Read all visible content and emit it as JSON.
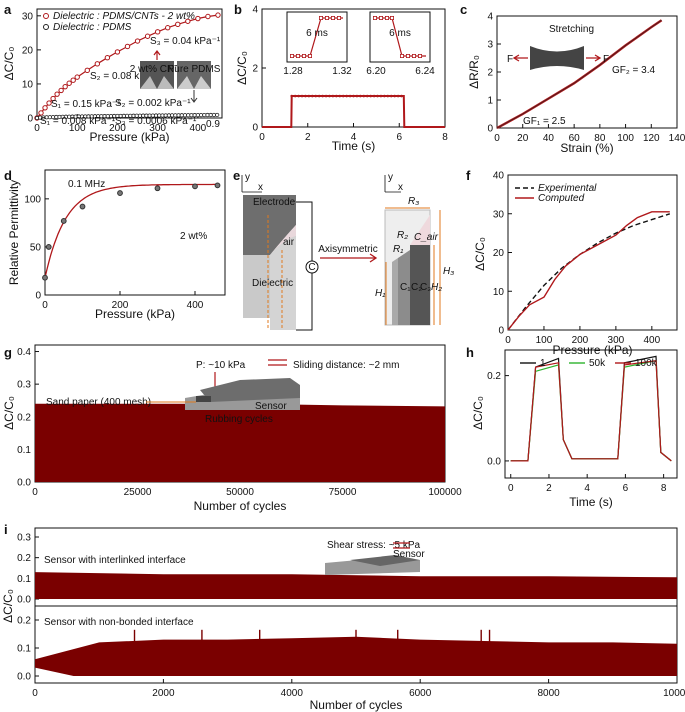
{
  "panels": {
    "a": {
      "letter": "a",
      "xlabel": "Pressure (kPa)",
      "ylabel": "ΔC/C₀",
      "xticks": [
        "0",
        "100",
        "200",
        "300",
        "400"
      ],
      "yticks": [
        "0",
        "10",
        "20",
        "30"
      ],
      "legend": [
        "Dielectric : PDMS/CNTs - 2 wt%",
        "Dielectric : PDMS"
      ],
      "annotations": {
        "s1": "S₁ = 0.15 kPa⁻¹",
        "s2": "S₂ = 0.08 kPa⁻¹",
        "s3": "S₃ = 0.04 kPa⁻¹",
        "p1": "S₁ = 0.008 kPa⁻¹",
        "p2": "S₂ = 0.002 kPa⁻¹",
        "p3": "S₃ = 0.0006 kPa⁻¹",
        "p_end": "0.9",
        "inset1": "2 wt% CNTs",
        "inset2": "Pure PDMS"
      }
    },
    "b": {
      "letter": "b",
      "xlabel": "Time (s)",
      "ylabel": "ΔC/C₀",
      "xticks": [
        "0",
        "2",
        "4",
        "6",
        "8"
      ],
      "yticks": [
        "0",
        "2",
        "4"
      ],
      "inset1": {
        "label": "6 ms",
        "xticks": [
          "1.28",
          "1.32"
        ]
      },
      "inset2": {
        "label": "6 ms",
        "xticks": [
          "6.20",
          "6.24"
        ]
      }
    },
    "c": {
      "letter": "c",
      "xlabel": "Strain (%)",
      "ylabel": "ΔR/R₀",
      "xticks": [
        "0",
        "20",
        "40",
        "60",
        "80",
        "100",
        "120",
        "140"
      ],
      "yticks": [
        "0",
        "1",
        "2",
        "3",
        "4"
      ],
      "annotations": {
        "stretch": "Stretching",
        "f_left": "F",
        "f_right": "F",
        "gf2": "GF₂ = 3.4",
        "gf1": "GF₁ = 2.5"
      }
    },
    "d": {
      "letter": "d",
      "xlabel": "Pressure (kPa)",
      "ylabel": "Relative Permittivity",
      "xticks": [
        "0",
        "200",
        "400"
      ],
      "yticks": [
        "0",
        "50",
        "100"
      ],
      "annotations": {
        "freq": "0.1 MHz",
        "wt": "2 wt%"
      }
    },
    "e": {
      "letter": "e",
      "labels": {
        "electrode": "Electrode",
        "air": "air",
        "dielectric": "Dielectric",
        "axisym": "Axisymmetric",
        "cap": "C",
        "r3": "R₃",
        "r2": "R₂",
        "r1": "R₁",
        "cair": "C_air",
        "h1": "H₁",
        "h2": "H₂",
        "h3": "H₃",
        "c1": "C₁",
        "c2": "C₂",
        "c3": "C₃",
        "y": "y",
        "x": "x"
      }
    },
    "f": {
      "letter": "f",
      "xlabel": "Pressure (kPa)",
      "ylabel": "ΔC/C₀",
      "xticks": [
        "0",
        "100",
        "200",
        "300",
        "400"
      ],
      "yticks": [
        "0",
        "10",
        "20",
        "30",
        "40"
      ],
      "legend": [
        "Experimental",
        "Computed"
      ]
    },
    "g": {
      "letter": "g",
      "xlabel": "Number of cycles",
      "ylabel": "ΔC/C₀",
      "xticks": [
        "0",
        "25000",
        "50000",
        "75000",
        "100000"
      ],
      "yticks": [
        "0.0",
        "0.1",
        "0.2",
        "0.3",
        "0.4"
      ],
      "annotations": {
        "pressure": "P: ~10 kPa",
        "sliding": "Sliding distance: ~2 mm",
        "sand": "Sand paper (400 mesh)",
        "sensor": "Sensor",
        "rubbing": "Rubbing cycles"
      }
    },
    "h": {
      "letter": "h",
      "xlabel": "Time (s)",
      "ylabel": "ΔC/C₀",
      "xticks": [
        "0",
        "2",
        "4",
        "6",
        "8"
      ],
      "yticks": [
        "0.0",
        "0.2"
      ],
      "legend": [
        "1",
        "50k",
        "100k"
      ]
    },
    "i": {
      "letter": "i",
      "xlabel": "Number of cycles",
      "ylabel": "ΔC/C₀",
      "xticks": [
        "0",
        "2000",
        "4000",
        "6000",
        "8000",
        "10000"
      ],
      "yticks_top": [
        "0.0",
        "0.1",
        "0.2",
        "0.3"
      ],
      "yticks_bottom": [
        "0.0",
        "0.1",
        "0.2"
      ],
      "annotations": {
        "shear": "Shear stress: ~5 kPa",
        "sensor": "Sensor",
        "top": "Sensor with interlinked interface",
        "bottom": "Sensor with non-bonded interface"
      }
    }
  },
  "colors": {
    "red": "#b0181b",
    "dark": "#7a0a0a",
    "green": "#2db32d",
    "black": "#111111"
  },
  "chart_data": [
    {
      "id": "a",
      "type": "scatter",
      "xlim": [
        0,
        460
      ],
      "ylim": [
        0,
        32
      ],
      "series": [
        {
          "name": "Dielectric : PDMS/CNTs - 2 wt%",
          "x": [
            0,
            10,
            20,
            30,
            40,
            50,
            60,
            70,
            80,
            90,
            100,
            125,
            150,
            175,
            200,
            225,
            250,
            275,
            300,
            325,
            350,
            375,
            400,
            425,
            450
          ],
          "y": [
            0,
            1.5,
            3,
            4.4,
            5.7,
            7,
            8.1,
            9.2,
            10.2,
            11.1,
            12,
            14,
            15.9,
            17.7,
            19.4,
            21,
            22.6,
            24,
            25.3,
            26.5,
            27.5,
            28.4,
            29.2,
            29.8,
            30.2
          ]
        },
        {
          "name": "Dielectric : PDMS",
          "x": [
            0,
            50,
            100,
            150,
            200,
            250,
            300,
            350,
            400,
            450
          ],
          "y": [
            0,
            0.3,
            0.45,
            0.55,
            0.62,
            0.68,
            0.74,
            0.8,
            0.85,
            0.9
          ]
        }
      ]
    },
    {
      "id": "b",
      "type": "line",
      "xlim": [
        0,
        8
      ],
      "ylim": [
        0,
        4
      ],
      "series": [
        {
          "name": "",
          "x": [
            0,
            1.28,
            1.3,
            6.2,
            6.22,
            8
          ],
          "y": [
            0,
            0,
            1.05,
            1.05,
            0,
            0
          ]
        }
      ]
    },
    {
      "id": "c",
      "type": "line",
      "xlim": [
        0,
        140
      ],
      "ylim": [
        0,
        4
      ],
      "series": [
        {
          "name": "",
          "x": [
            0,
            20,
            40,
            60,
            80,
            100,
            120,
            128
          ],
          "y": [
            0,
            0.5,
            1.05,
            1.6,
            2.25,
            2.95,
            3.6,
            3.85
          ]
        }
      ]
    },
    {
      "id": "d",
      "type": "scatter",
      "xlim": [
        0,
        480
      ],
      "ylim": [
        0,
        130
      ],
      "series": [
        {
          "name": "2 wt%",
          "x": [
            0,
            10,
            50,
            100,
            200,
            300,
            400,
            460
          ],
          "y": [
            18,
            50,
            77,
            92,
            106,
            111,
            113,
            114
          ]
        }
      ]
    },
    {
      "id": "f",
      "type": "line",
      "xlim": [
        0,
        470
      ],
      "ylim": [
        0,
        40
      ],
      "series": [
        {
          "name": "Experimental",
          "x": [
            0,
            50,
            100,
            150,
            200,
            250,
            300,
            350,
            400,
            450
          ],
          "y": [
            0,
            6,
            11.5,
            16,
            19.5,
            22.5,
            25,
            27,
            28.5,
            30
          ]
        },
        {
          "name": "Computed",
          "x": [
            0,
            30,
            60,
            100,
            130,
            160,
            200,
            250,
            300,
            330,
            360,
            400,
            450
          ],
          "y": [
            0,
            3.5,
            6.5,
            8.5,
            13,
            16.5,
            19.5,
            22,
            24.5,
            27,
            29,
            30.5,
            30.5
          ]
        }
      ]
    },
    {
      "id": "g",
      "type": "area",
      "xlim": [
        0,
        100000
      ],
      "ylim": [
        0,
        0.42
      ],
      "series": [
        {
          "name": "",
          "x": [
            0,
            25000,
            50000,
            75000,
            100000
          ],
          "y_low": [
            0.0,
            0.0,
            0.0,
            0.0,
            0.0
          ],
          "y_high": [
            0.24,
            0.24,
            0.24,
            0.235,
            0.232
          ]
        }
      ]
    },
    {
      "id": "h",
      "type": "line",
      "xlim": [
        -0.3,
        8.7
      ],
      "ylim": [
        -0.04,
        0.26
      ],
      "series": [
        {
          "name": "1",
          "x": [
            0,
            0.9,
            1.3,
            2.5,
            2.75,
            3.2,
            5.6,
            5.95,
            7.6,
            7.85,
            8.4
          ],
          "y": [
            0,
            0,
            0.22,
            0.24,
            0.05,
            0.005,
            0.005,
            0.23,
            0.245,
            0.02,
            0
          ]
        },
        {
          "name": "50k",
          "x": [
            0,
            0.9,
            1.3,
            2.5,
            2.75,
            3.2,
            5.6,
            5.95,
            7.6,
            7.85,
            8.4
          ],
          "y": [
            0,
            0,
            0.21,
            0.225,
            0.05,
            0.005,
            0.005,
            0.22,
            0.235,
            0.02,
            0
          ]
        },
        {
          "name": "100k",
          "x": [
            0,
            0.9,
            1.3,
            2.5,
            2.75,
            3.2,
            5.6,
            5.95,
            7.6,
            7.85,
            8.4
          ],
          "y": [
            0,
            0,
            0.22,
            0.23,
            0.05,
            0.005,
            0.005,
            0.225,
            0.235,
            0.02,
            0
          ]
        }
      ]
    },
    {
      "id": "i",
      "type": "area",
      "xlim": [
        0,
        10000
      ],
      "series": [
        {
          "name": "Sensor with interlinked interface",
          "x": [
            0,
            2000,
            4000,
            6000,
            8000,
            10000
          ],
          "y_low": [
            0,
            0,
            0,
            0,
            0,
            0
          ],
          "y_high": [
            0.13,
            0.12,
            0.12,
            0.11,
            0.11,
            0.105
          ]
        },
        {
          "name": "Sensor with non-bonded interface",
          "x": [
            0,
            1000,
            2000,
            3000,
            4000,
            5000,
            6000,
            7000,
            8000,
            9000,
            10000
          ],
          "y_low": [
            0.03,
            0.0,
            0.0,
            0.0,
            0.0,
            0.0,
            0.0,
            0.0,
            0.0,
            0.0,
            0.0
          ],
          "y_high": [
            0.06,
            0.12,
            0.13,
            0.13,
            0.135,
            0.14,
            0.13,
            0.125,
            0.12,
            0.12,
            0.115
          ]
        }
      ]
    }
  ]
}
